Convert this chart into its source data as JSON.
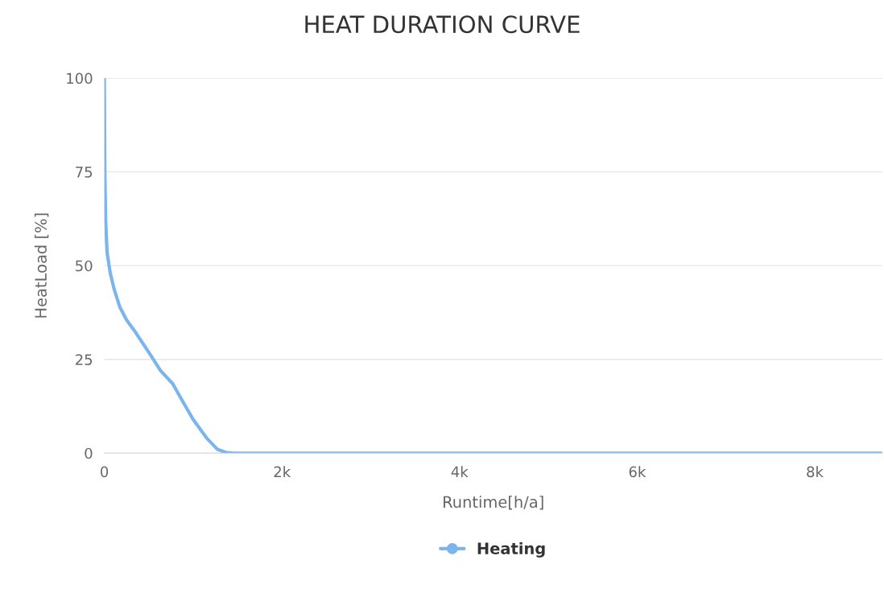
{
  "chart_data": {
    "type": "line",
    "title": "HEAT DURATION CURVE",
    "xlabel": "Runtime[h/a]",
    "ylabel": "HeatLoad [%]",
    "x": [
      0,
      6,
      15,
      31,
      67,
      113,
      174,
      251,
      358,
      511,
      633,
      771,
      878,
      1000,
      1153,
      1275,
      1367,
      1459,
      8760
    ],
    "series": [
      {
        "name": "Heating",
        "color": "#7cb5ec",
        "values": [
          100,
          75,
          62,
          53.5,
          48,
          43.5,
          39,
          35.5,
          32,
          26.5,
          22,
          18.5,
          14,
          9,
          4,
          1,
          0.2,
          0,
          0
        ]
      }
    ],
    "xlim": [
      0,
      8760
    ],
    "xticks": [
      {
        "value": 0,
        "label": "0"
      },
      {
        "value": 2000,
        "label": "2k"
      },
      {
        "value": 4000,
        "label": "4k"
      },
      {
        "value": 6000,
        "label": "6k"
      },
      {
        "value": 8000,
        "label": "8k"
      }
    ],
    "ylim": [
      0,
      100
    ],
    "yticks": [
      0,
      25,
      50,
      75,
      100
    ],
    "grid": "y",
    "legend": "bottom"
  }
}
